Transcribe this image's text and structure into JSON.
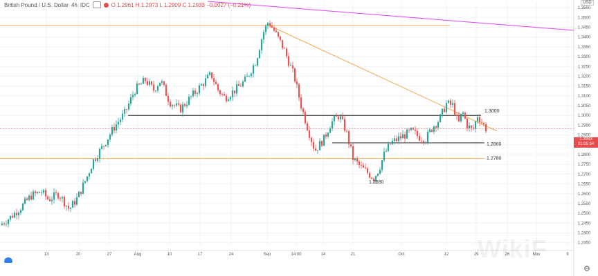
{
  "legend": {
    "symbol": "British Pound / U.S. Dollar",
    "interval": "4h",
    "source": "IDC",
    "ohlc": "O 1.2961  H 1.2973  L 1.2909  C 1.2933  −0.0027 (−0.21%)"
  },
  "currency_label": "USD",
  "last_price_badge": {
    "price": "1.2933",
    "countdown": "01:05:34"
  },
  "watermark": "WikiF",
  "icons": {
    "tradingview_logo": "cloud-logo-icon",
    "settings": "gear-icon",
    "visibility": "eye-icon"
  },
  "colors": {
    "up": "#26a69a",
    "down": "#ef5350",
    "trend_orange": "#f5a94f",
    "level_black": "#222222",
    "magenta": "#e040fb",
    "badge": "#e54b4b",
    "last_price_line": "#e54b4b"
  },
  "chart_data": {
    "type": "candlestick",
    "title": "British Pound / U.S. Dollar",
    "xlabel": "",
    "ylabel": "",
    "ylim": [
      1.2335,
      1.2575
    ],
    "y_ticks": [
      "1.2350",
      "1.2400",
      "1.2450",
      "1.2500",
      "1.2550",
      "1.2600",
      "1.2650",
      "1.2700",
      "1.2750",
      "1.2800",
      "1.2850",
      "1.2900",
      "1.2950",
      "1.3000",
      "1.3050",
      "1.3100",
      "1.3150",
      "1.3200",
      "1.3250",
      "1.3300",
      "1.3350",
      "1.3400",
      "1.3450",
      "1.3500",
      "1.3550"
    ],
    "x_tick_labels": [
      "13",
      "20",
      "27",
      "Aug",
      "10",
      "17",
      "24",
      "Sep",
      "14:00",
      "14",
      "21",
      "Oct",
      "12",
      "19",
      "26",
      "Nov",
      "9"
    ],
    "grid": true,
    "series_path": [
      [
        0,
        1.244
      ],
      [
        15,
        1.248
      ],
      [
        30,
        1.253
      ],
      [
        45,
        1.259
      ],
      [
        60,
        1.261
      ],
      [
        70,
        1.257
      ],
      [
        85,
        1.26
      ],
      [
        100,
        1.252
      ],
      [
        112,
        1.258
      ],
      [
        125,
        1.268
      ],
      [
        135,
        1.277
      ],
      [
        150,
        1.285
      ],
      [
        165,
        1.294
      ],
      [
        180,
        1.301
      ],
      [
        195,
        1.313
      ],
      [
        210,
        1.318
      ],
      [
        222,
        1.313
      ],
      [
        232,
        1.318
      ],
      [
        245,
        1.307
      ],
      [
        260,
        1.303
      ],
      [
        275,
        1.309
      ],
      [
        290,
        1.315
      ],
      [
        305,
        1.321
      ],
      [
        315,
        1.313
      ],
      [
        325,
        1.309
      ],
      [
        340,
        1.313
      ],
      [
        355,
        1.318
      ],
      [
        370,
        1.328
      ],
      [
        380,
        1.342
      ],
      [
        388,
        1.348
      ],
      [
        398,
        1.342
      ],
      [
        410,
        1.334
      ],
      [
        425,
        1.32
      ],
      [
        435,
        1.305
      ],
      [
        445,
        1.293
      ],
      [
        455,
        1.282
      ],
      [
        468,
        1.288
      ],
      [
        478,
        1.296
      ],
      [
        490,
        1.3
      ],
      [
        500,
        1.292
      ],
      [
        510,
        1.278
      ],
      [
        520,
        1.274
      ],
      [
        530,
        1.271
      ],
      [
        540,
        1.268
      ],
      [
        548,
        1.273
      ],
      [
        555,
        1.28
      ],
      [
        565,
        1.286
      ],
      [
        575,
        1.288
      ],
      [
        585,
        1.29
      ],
      [
        595,
        1.292
      ],
      [
        605,
        1.289
      ],
      [
        615,
        1.288
      ],
      [
        625,
        1.294
      ],
      [
        635,
        1.298
      ],
      [
        645,
        1.306
      ],
      [
        655,
        1.305
      ],
      [
        662,
        1.295
      ],
      [
        668,
        1.302
      ],
      [
        675,
        1.295
      ],
      [
        683,
        1.292
      ],
      [
        690,
        1.3
      ],
      [
        697,
        1.296
      ],
      [
        702,
        1.2933
      ]
    ],
    "annotations": [
      {
        "label": "1.3000",
        "level": 1.3
      },
      {
        "label": "1.2860",
        "level": 1.286
      },
      {
        "label": "1.2780",
        "level": 1.278
      },
      {
        "label": "1.2680",
        "level": 1.268
      }
    ],
    "last_price": 1.2933
  }
}
